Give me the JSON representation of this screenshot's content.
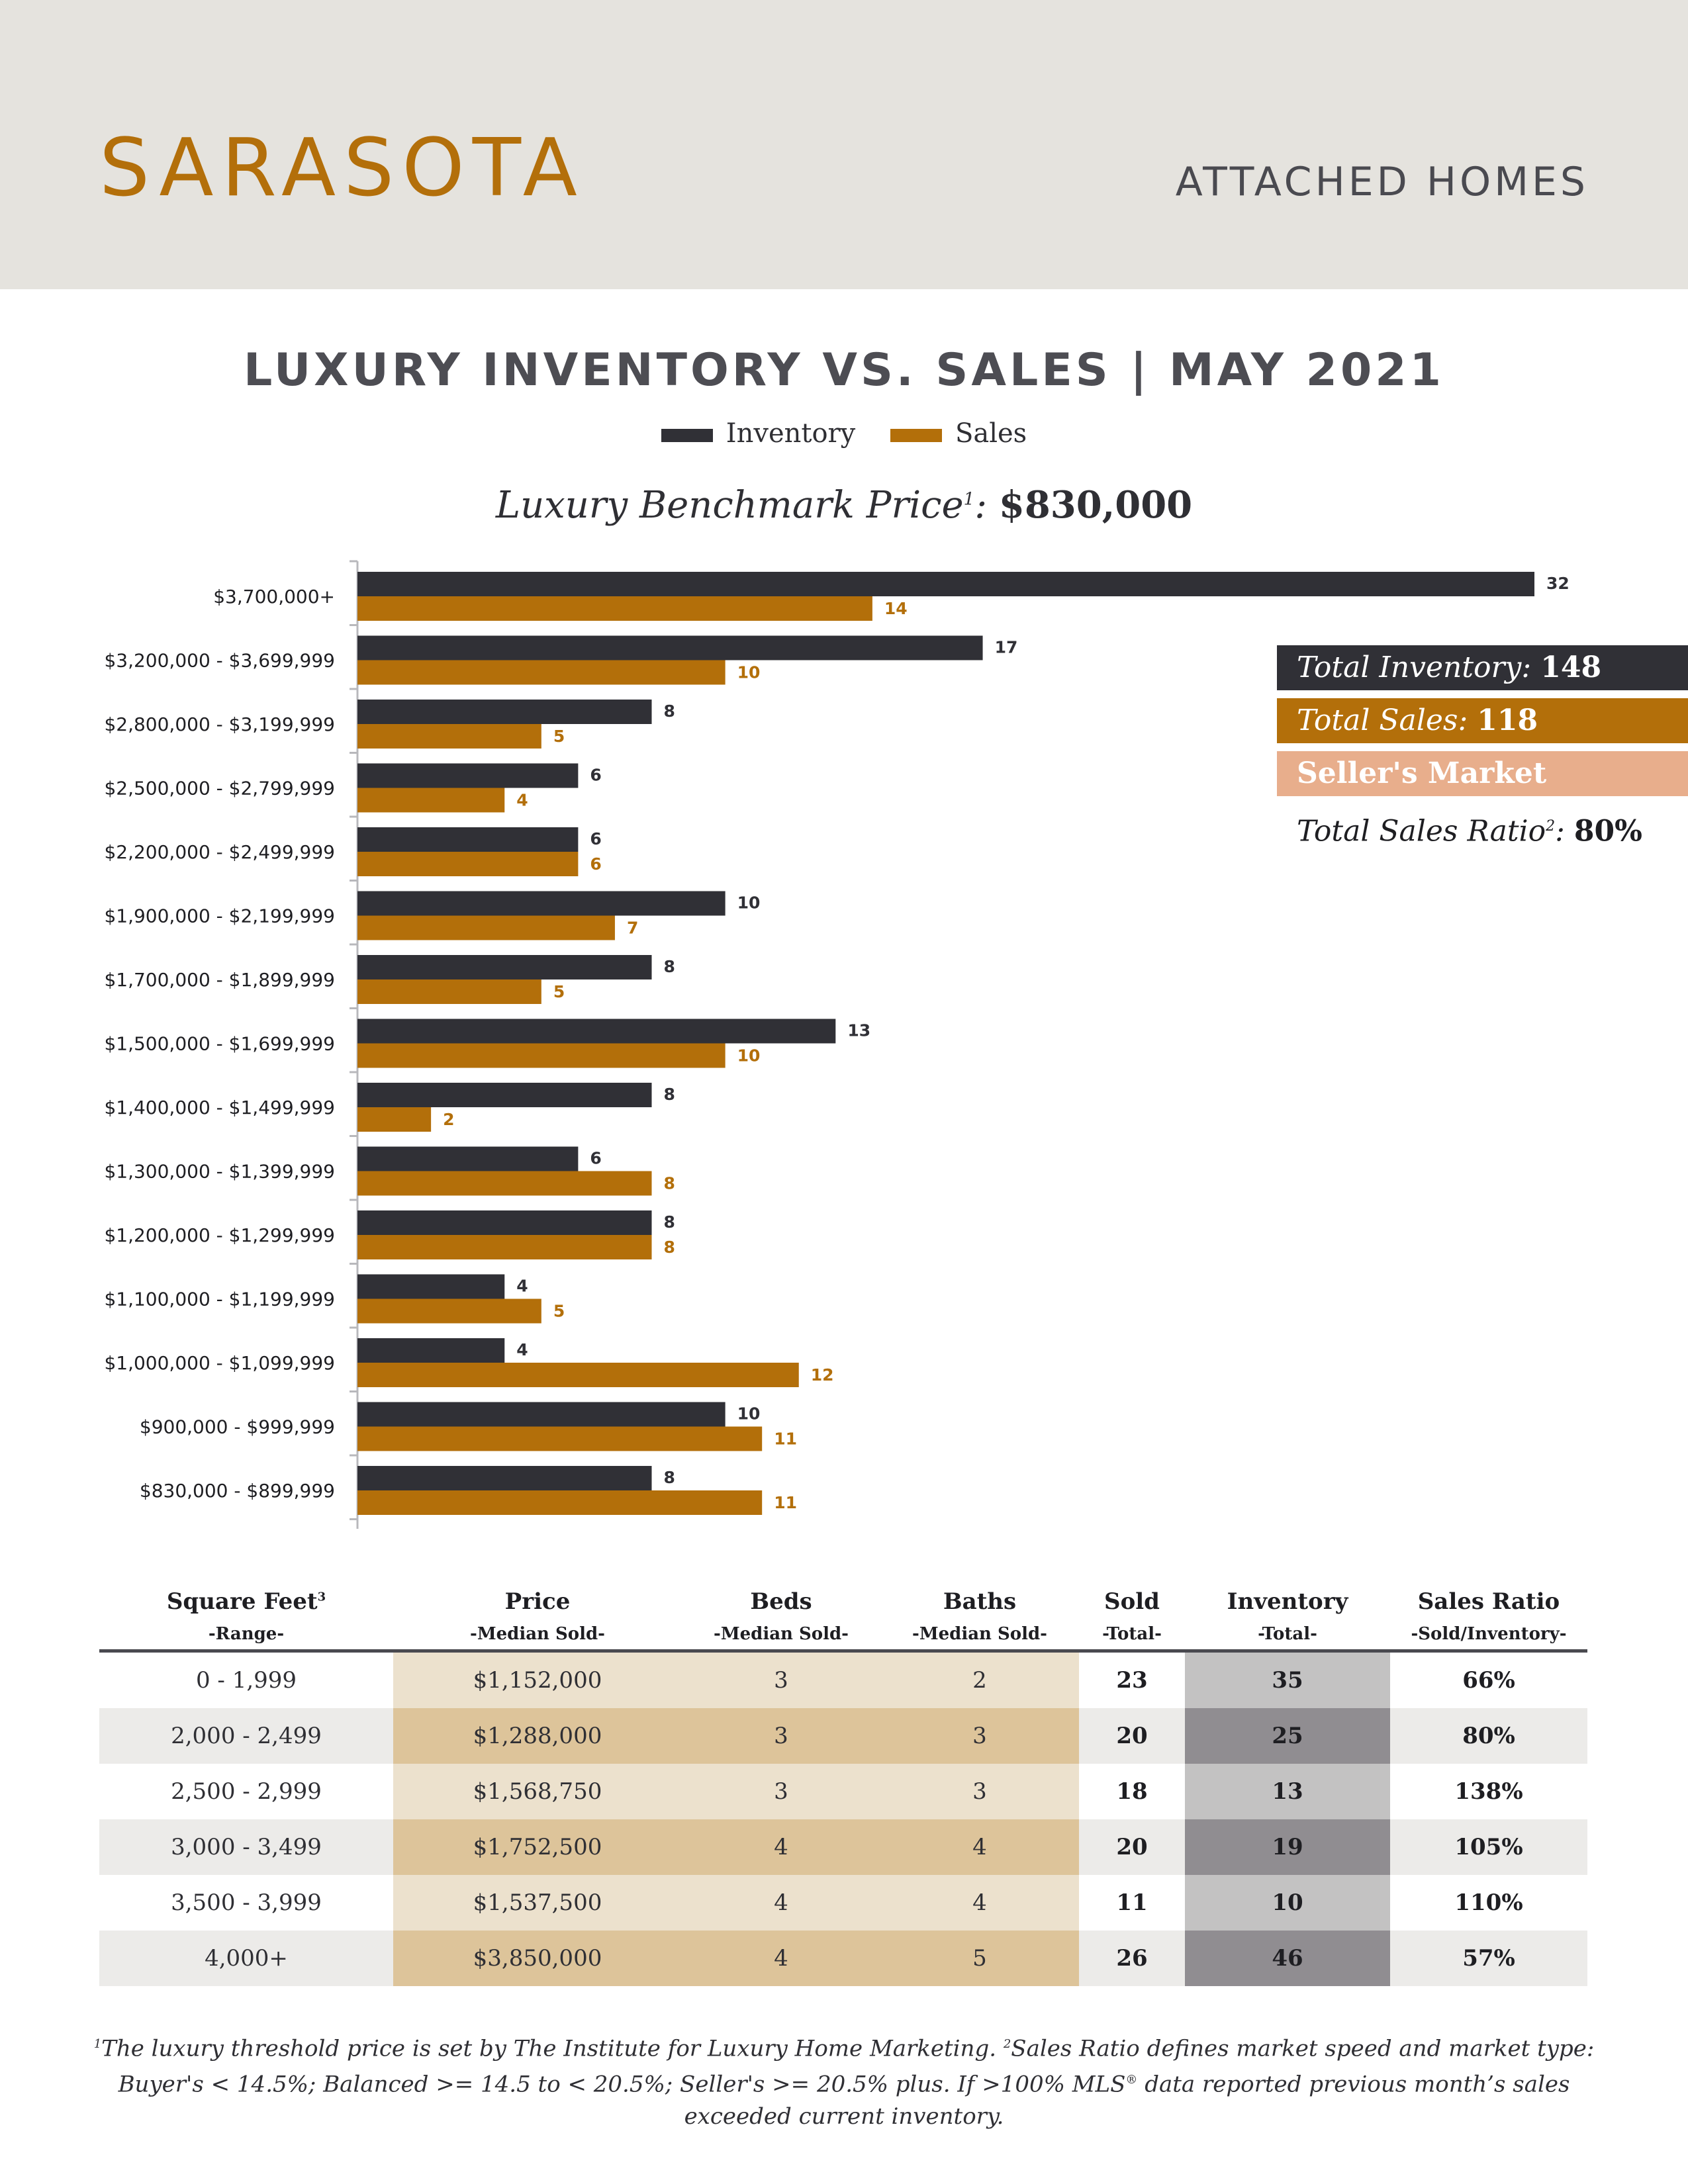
{
  "header": {
    "city": "SARASOTA",
    "category": "ATTACHED HOMES"
  },
  "colors": {
    "inventory": "#303036",
    "sales": "#b36f0a",
    "market_badge": "#e8ae8c",
    "header_bg": "#e5e3de"
  },
  "chart_data": {
    "type": "bar",
    "orientation": "horizontal",
    "title": "LUXURY INVENTORY VS. SALES | MAY 2021",
    "legend": [
      "Inventory",
      "Sales"
    ],
    "legend_position": "top",
    "categories": [
      "$3,700,000+",
      "$3,200,000 - $3,699,999",
      "$2,800,000 - $3,199,999",
      "$2,500,000 - $2,799,999",
      "$2,200,000 - $2,499,999",
      "$1,900,000 - $2,199,999",
      "$1,700,000 - $1,899,999",
      "$1,500,000 - $1,699,999",
      "$1,400,000 - $1,499,999",
      "$1,300,000 - $1,399,999",
      "$1,200,000 - $1,299,999",
      "$1,100,000 - $1,199,999",
      "$1,000,000 - $1,099,999",
      "$900,000 - $999,999",
      "$830,000 - $899,999"
    ],
    "series": [
      {
        "name": "Inventory",
        "values": [
          32,
          17,
          8,
          6,
          6,
          10,
          8,
          13,
          8,
          6,
          8,
          4,
          4,
          10,
          8
        ]
      },
      {
        "name": "Sales",
        "values": [
          14,
          10,
          5,
          4,
          6,
          7,
          5,
          10,
          2,
          8,
          8,
          5,
          12,
          11,
          11
        ]
      }
    ],
    "xlim": [
      0,
      32
    ],
    "grid": false
  },
  "benchmark": {
    "label": "Luxury Benchmark Price",
    "sup": "1",
    "separator": ":",
    "value": "$830,000"
  },
  "summary": {
    "inventory_label": "Total Inventory:",
    "inventory_value": "148",
    "sales_label": "Total Sales:",
    "sales_value": "118",
    "market_type": "Seller's Market",
    "ratio_label": "Total Sales Ratio",
    "ratio_sup": "2",
    "ratio_sep": ":",
    "ratio_value": "80%"
  },
  "table": {
    "headers": [
      {
        "title": "Square Feet",
        "sup": "3",
        "sub": "-Range-"
      },
      {
        "title": "Price",
        "sup": "",
        "sub": "-Median Sold-"
      },
      {
        "title": "Beds",
        "sup": "",
        "sub": "-Median Sold-"
      },
      {
        "title": "Baths",
        "sup": "",
        "sub": "-Median Sold-"
      },
      {
        "title": "Sold",
        "sup": "",
        "sub": "-Total-"
      },
      {
        "title": "Inventory",
        "sup": "",
        "sub": "-Total-"
      },
      {
        "title": "Sales Ratio",
        "sup": "",
        "sub": "-Sold/Inventory-"
      }
    ],
    "rows": [
      [
        "0 - 1,999",
        "$1,152,000",
        "3",
        "2",
        "23",
        "35",
        "66%"
      ],
      [
        "2,000 - 2,499",
        "$1,288,000",
        "3",
        "3",
        "20",
        "25",
        "80%"
      ],
      [
        "2,500 - 2,999",
        "$1,568,750",
        "3",
        "3",
        "18",
        "13",
        "138%"
      ],
      [
        "3,000 - 3,499",
        "$1,752,500",
        "4",
        "4",
        "20",
        "19",
        "105%"
      ],
      [
        "3,500 - 3,999",
        "$1,537,500",
        "4",
        "4",
        "11",
        "10",
        "110%"
      ],
      [
        "4,000+",
        "$3,850,000",
        "4",
        "5",
        "26",
        "46",
        "57%"
      ]
    ]
  },
  "footnote": {
    "n1": "1",
    "text1": "The luxury threshold price is set by The Institute for Luxury Home Marketing. ",
    "n2": "2",
    "text2": "Sales Ratio defines market speed and market type: Buyer's < 14.5%; Balanced >= 14.5 to < 20.5%; Seller's >= 20.5% plus. If >100% MLS",
    "reg": "®",
    "text3": " data reported previous month’s sales exceeded current inventory."
  }
}
